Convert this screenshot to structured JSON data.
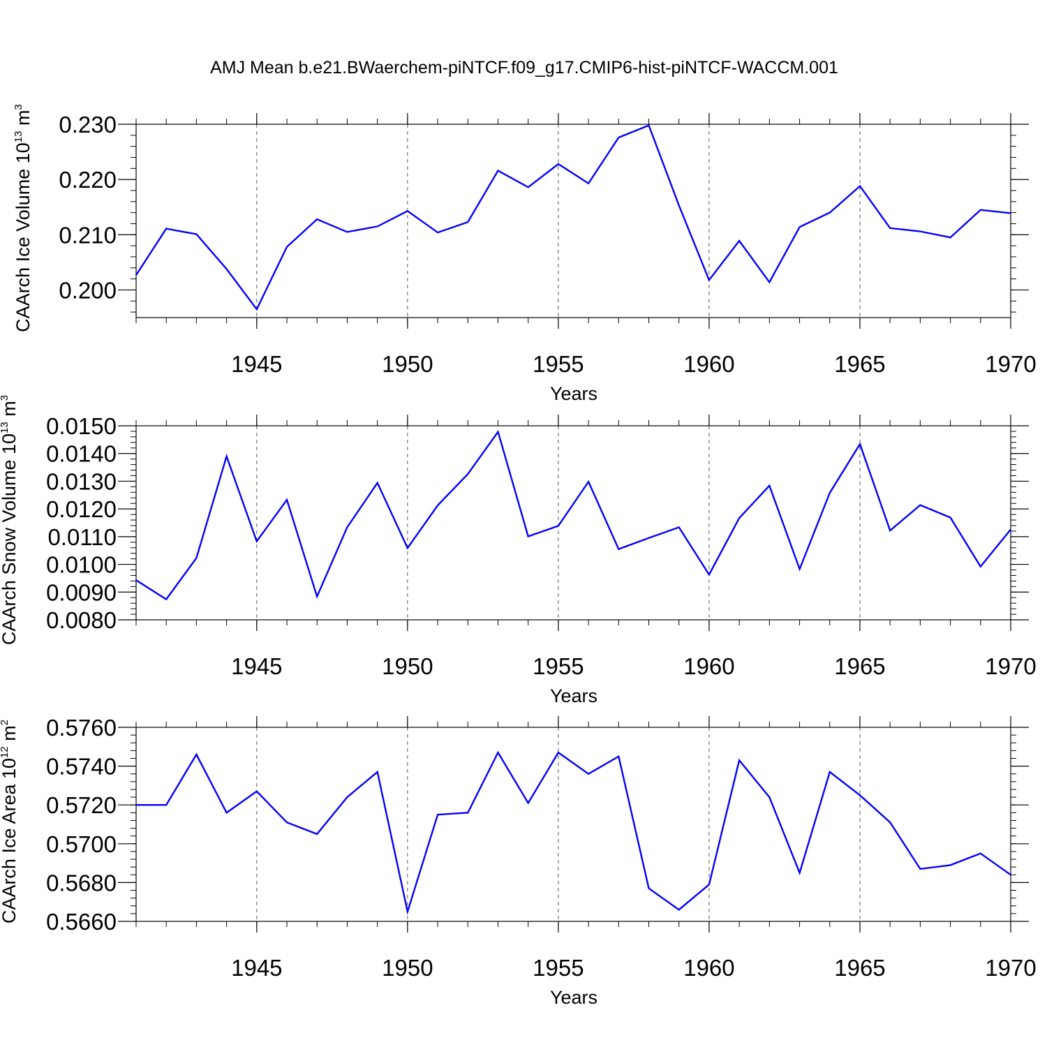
{
  "title": "AMJ Mean b.e21.BWaerchem-piNTCF.f09_g17.CMIP6-hist-piNTCF-WACCM.001",
  "line_color": "#0000ff",
  "chart_data": [
    {
      "type": "line",
      "ylabel": "CAArch Ice Volume",
      "ylabel_unit_base": "10",
      "ylabel_unit_exp": "13",
      "ylabel_unit_suffix": "m",
      "ylabel_unit_suffix_exp": "3",
      "xlabel": "Years",
      "xlim": [
        1941,
        1970
      ],
      "ylim": [
        0.195,
        0.23
      ],
      "yticks": [
        0.2,
        0.21,
        0.22,
        0.23
      ],
      "ytick_labels": [
        "0.200",
        "0.210",
        "0.220",
        "0.230"
      ],
      "xticks": [
        1945,
        1950,
        1955,
        1960,
        1965,
        1970
      ],
      "xtick_labels": [
        "1945",
        "1950",
        "1955",
        "1960",
        "1965",
        "1970"
      ],
      "x": [
        1941,
        1942,
        1943,
        1944,
        1945,
        1946,
        1947,
        1948,
        1949,
        1950,
        1951,
        1952,
        1953,
        1954,
        1955,
        1956,
        1957,
        1958,
        1959,
        1960,
        1961,
        1962,
        1963,
        1964,
        1965,
        1966,
        1967,
        1968,
        1969,
        1970
      ],
      "series": [
        {
          "values": [
            0.2027,
            0.2111,
            0.2101,
            0.2038,
            0.1965,
            0.2078,
            0.2128,
            0.2105,
            0.2115,
            0.2143,
            0.2104,
            0.2123,
            0.2216,
            0.2186,
            0.2228,
            0.2193,
            0.2276,
            0.2298,
            0.2153,
            0.2018,
            0.2089,
            0.2014,
            0.2114,
            0.214,
            0.2188,
            0.2112,
            0.2106,
            0.2095,
            0.2145,
            0.2139
          ]
        }
      ]
    },
    {
      "type": "line",
      "ylabel": "CAArch Snow Volume",
      "ylabel_unit_base": "10",
      "ylabel_unit_exp": "13",
      "ylabel_unit_suffix": "m",
      "ylabel_unit_suffix_exp": "3",
      "xlabel": "Years",
      "xlim": [
        1941,
        1970
      ],
      "ylim": [
        0.008,
        0.015
      ],
      "yticks": [
        0.008,
        0.009,
        0.01,
        0.011,
        0.012,
        0.013,
        0.014,
        0.015
      ],
      "ytick_labels": [
        "0.0080",
        "0.0090",
        "0.0100",
        "0.0110",
        "0.0120",
        "0.0130",
        "0.0140",
        "0.0150"
      ],
      "xticks": [
        1945,
        1950,
        1955,
        1960,
        1965,
        1970
      ],
      "xtick_labels": [
        "1945",
        "1950",
        "1955",
        "1960",
        "1965",
        "1970"
      ],
      "x": [
        1941,
        1942,
        1943,
        1944,
        1945,
        1946,
        1947,
        1948,
        1949,
        1950,
        1951,
        1952,
        1953,
        1954,
        1955,
        1956,
        1957,
        1958,
        1959,
        1960,
        1961,
        1962,
        1963,
        1964,
        1965,
        1966,
        1967,
        1968,
        1969,
        1970
      ],
      "series": [
        {
          "values": [
            0.00943,
            0.00874,
            0.01023,
            0.0139,
            0.01083,
            0.01233,
            0.00884,
            0.01134,
            0.01294,
            0.01059,
            0.01213,
            0.01326,
            0.01478,
            0.01101,
            0.01139,
            0.01298,
            0.01055,
            0.01095,
            0.01134,
            0.00963,
            0.01167,
            0.01284,
            0.00983,
            0.01258,
            0.01434,
            0.01122,
            0.01214,
            0.01169,
            0.00992,
            0.01126
          ]
        }
      ]
    },
    {
      "type": "line",
      "ylabel": "CAArch Ice Area",
      "ylabel_unit_base": "10",
      "ylabel_unit_exp": "12",
      "ylabel_unit_suffix": "m",
      "ylabel_unit_suffix_exp": "2",
      "xlabel": "Years",
      "xlim": [
        1941,
        1970
      ],
      "ylim": [
        0.566,
        0.576
      ],
      "yticks": [
        0.566,
        0.568,
        0.57,
        0.572,
        0.574,
        0.576
      ],
      "ytick_labels": [
        "0.5660",
        "0.5680",
        "0.5700",
        "0.5720",
        "0.5740",
        "0.5760"
      ],
      "xticks": [
        1945,
        1950,
        1955,
        1960,
        1965,
        1970
      ],
      "xtick_labels": [
        "1945",
        "1950",
        "1955",
        "1960",
        "1965",
        "1970"
      ],
      "x": [
        1941,
        1942,
        1943,
        1944,
        1945,
        1946,
        1947,
        1948,
        1949,
        1950,
        1951,
        1952,
        1953,
        1954,
        1955,
        1956,
        1957,
        1958,
        1959,
        1960,
        1961,
        1962,
        1963,
        1964,
        1965,
        1966,
        1967,
        1968,
        1969,
        1970
      ],
      "series": [
        {
          "values": [
            0.572,
            0.572,
            0.5746,
            0.5716,
            0.5727,
            0.5711,
            0.5705,
            0.5724,
            0.5737,
            0.5665,
            0.5715,
            0.5716,
            0.5747,
            0.5721,
            0.5747,
            0.5736,
            0.5745,
            0.5677,
            0.5666,
            0.5679,
            0.5743,
            0.5724,
            0.5685,
            0.5737,
            0.5725,
            0.5711,
            0.5687,
            0.5689,
            0.5695,
            0.5684
          ]
        }
      ]
    }
  ]
}
